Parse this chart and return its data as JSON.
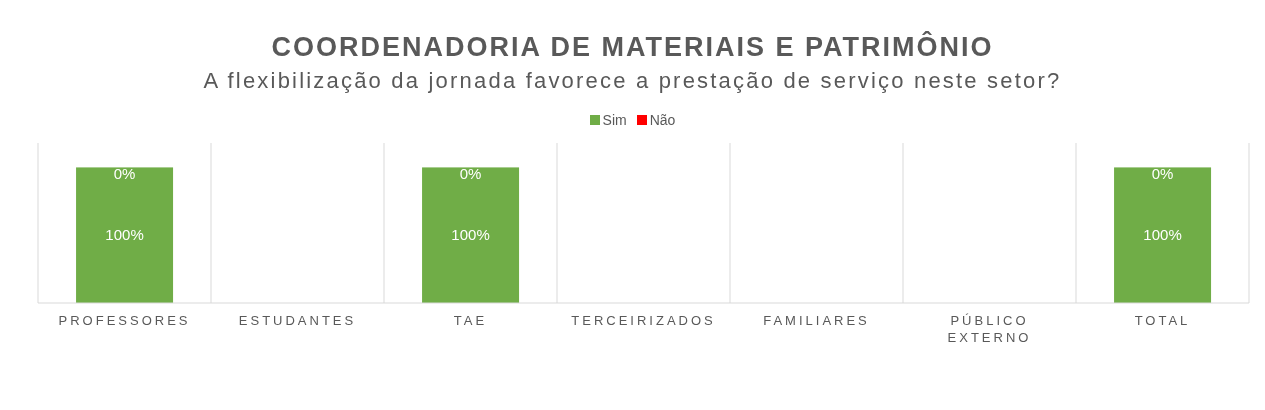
{
  "chart_data": {
    "type": "bar",
    "title": "COORDENADORIA  DE MATERIAIS  E PATRIMÔNIO",
    "subtitle": "A flexibilização da jornada favorece a prestação de serviço neste setor?",
    "categories": [
      "PROFESSORES",
      "ESTUDANTES",
      "TAE",
      "TERCEIRIZADOS",
      "FAMILIARES",
      "PÚBLICO EXTERNO",
      "TOTAL"
    ],
    "stacked": true,
    "grid": "x",
    "legend": "top",
    "series": [
      {
        "name": "Sim",
        "color": "#70ad47",
        "values": [
          100,
          null,
          100,
          null,
          null,
          null,
          100
        ],
        "value_labels": [
          "100%",
          null,
          "100%",
          null,
          null,
          null,
          "100%"
        ]
      },
      {
        "name": "Não",
        "color": "#ff0000",
        "values": [
          0,
          null,
          0,
          null,
          null,
          null,
          0
        ],
        "value_labels": [
          "0%",
          null,
          "0%",
          null,
          null,
          null,
          "0%"
        ]
      }
    ]
  }
}
